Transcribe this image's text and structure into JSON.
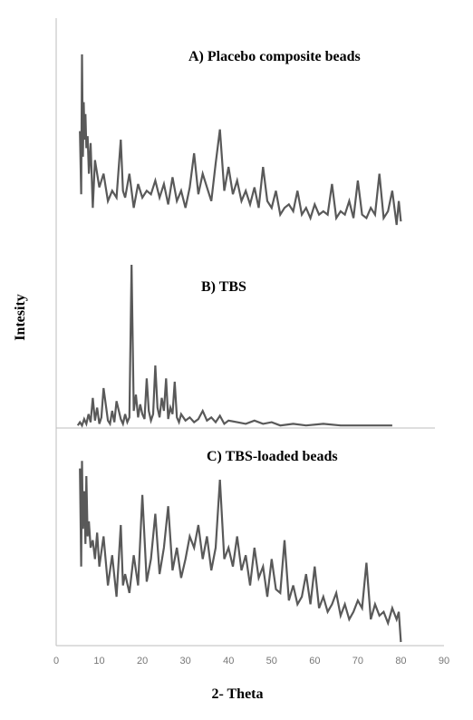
{
  "chart_data": {
    "type": "line",
    "xlabel": "2- Theta",
    "ylabel": "Intesity",
    "xlim": [
      0,
      90
    ],
    "xticks": [
      0,
      10,
      20,
      30,
      40,
      50,
      60,
      70,
      80,
      90
    ],
    "grid": false,
    "colors": {
      "trace": "#595959",
      "axis": "#bdbdbd"
    },
    "panels": [
      {
        "title": "A) Placebo composite beads",
        "series": [
          {
            "x": [
              5.5,
              5.8,
              6.0,
              6.2,
              6.4,
              6.6,
              6.8,
              7.0,
              7.3,
              7.6,
              8.0,
              8.5,
              9.0,
              10.0,
              11.0,
              12.0,
              13.0,
              14.0,
              15.0,
              15.5,
              16.0,
              17.0,
              18.0,
              19.0,
              20.0,
              21.0,
              22.0,
              23.0,
              24.0,
              25.0,
              26.0,
              27.0,
              28.0,
              29.0,
              30.0,
              31.0,
              32.0,
              33.0,
              34.0,
              35.0,
              36.0,
              37.0,
              38.0,
              39.0,
              40.0,
              41.0,
              42.0,
              43.0,
              44.0,
              45.0,
              46.0,
              47.0,
              48.0,
              49.0,
              50.0,
              51.0,
              52.0,
              53.0,
              54.0,
              55.0,
              56.0,
              57.0,
              58.0,
              59.0,
              60.0,
              61.0,
              62.0,
              63.0,
              64.0,
              65.0,
              66.0,
              67.0,
              68.0,
              69.0,
              70.0,
              71.0,
              72.0,
              73.0,
              74.0,
              75.0,
              76.0,
              77.0,
              78.0,
              79.0,
              79.5,
              80.0
            ],
            "y": [
              0.55,
              0.18,
              1.0,
              0.4,
              0.72,
              0.5,
              0.65,
              0.45,
              0.52,
              0.3,
              0.48,
              0.1,
              0.38,
              0.22,
              0.3,
              0.14,
              0.2,
              0.16,
              0.5,
              0.2,
              0.16,
              0.3,
              0.1,
              0.24,
              0.16,
              0.2,
              0.18,
              0.26,
              0.16,
              0.24,
              0.12,
              0.28,
              0.14,
              0.2,
              0.1,
              0.22,
              0.42,
              0.18,
              0.3,
              0.22,
              0.14,
              0.36,
              0.56,
              0.2,
              0.34,
              0.18,
              0.26,
              0.14,
              0.2,
              0.12,
              0.22,
              0.1,
              0.34,
              0.14,
              0.1,
              0.2,
              0.06,
              0.1,
              0.12,
              0.08,
              0.2,
              0.06,
              0.1,
              0.04,
              0.12,
              0.06,
              0.08,
              0.06,
              0.24,
              0.04,
              0.08,
              0.06,
              0.14,
              0.04,
              0.26,
              0.06,
              0.04,
              0.1,
              0.06,
              0.3,
              0.04,
              0.08,
              0.2,
              0.0,
              0.14,
              0.02
            ]
          }
        ]
      },
      {
        "title": "B) TBS",
        "series": [
          {
            "x": [
              5.0,
              5.5,
              6.0,
              6.5,
              7.0,
              7.5,
              8.0,
              8.5,
              9.0,
              9.5,
              10.0,
              10.5,
              11.0,
              12.0,
              12.5,
              13.0,
              13.5,
              14.0,
              15.0,
              15.5,
              16.0,
              16.5,
              17.0,
              17.5,
              18.0,
              18.5,
              19.0,
              19.5,
              20.0,
              20.5,
              21.0,
              21.5,
              22.0,
              22.5,
              23.0,
              23.5,
              24.0,
              24.5,
              25.0,
              25.5,
              26.0,
              26.5,
              27.0,
              27.5,
              28.0,
              28.5,
              29.0,
              30.0,
              31.0,
              32.0,
              33.0,
              34.0,
              35.0,
              36.0,
              37.0,
              38.0,
              39.0,
              40.0,
              42.0,
              44.0,
              46.0,
              48.0,
              50.0,
              52.0,
              55.0,
              58.0,
              62.0,
              66.0,
              70.0,
              74.0,
              78.0
            ],
            "y": [
              0.01,
              0.03,
              0.01,
              0.05,
              0.02,
              0.08,
              0.03,
              0.18,
              0.04,
              0.12,
              0.02,
              0.06,
              0.24,
              0.04,
              0.02,
              0.1,
              0.03,
              0.16,
              0.05,
              0.02,
              0.08,
              0.03,
              0.06,
              1.0,
              0.1,
              0.2,
              0.06,
              0.14,
              0.08,
              0.05,
              0.3,
              0.1,
              0.04,
              0.08,
              0.38,
              0.12,
              0.06,
              0.18,
              0.1,
              0.3,
              0.05,
              0.12,
              0.08,
              0.28,
              0.06,
              0.03,
              0.08,
              0.04,
              0.06,
              0.03,
              0.05,
              0.1,
              0.04,
              0.06,
              0.03,
              0.07,
              0.02,
              0.04,
              0.03,
              0.02,
              0.04,
              0.02,
              0.03,
              0.01,
              0.02,
              0.01,
              0.02,
              0.01,
              0.01,
              0.01,
              0.01
            ]
          }
        ]
      },
      {
        "title": "C) TBS-loaded beads",
        "series": [
          {
            "x": [
              5.5,
              5.8,
              6.0,
              6.2,
              6.5,
              6.8,
              7.0,
              7.3,
              7.6,
              8.0,
              8.5,
              9.0,
              9.5,
              10.0,
              11.0,
              12.0,
              13.0,
              14.0,
              15.0,
              15.5,
              16.0,
              17.0,
              18.0,
              19.0,
              20.0,
              21.0,
              22.0,
              23.0,
              24.0,
              25.0,
              26.0,
              27.0,
              28.0,
              29.0,
              30.0,
              31.0,
              32.0,
              33.0,
              34.0,
              35.0,
              36.0,
              37.0,
              38.0,
              39.0,
              40.0,
              41.0,
              42.0,
              43.0,
              44.0,
              45.0,
              46.0,
              47.0,
              48.0,
              49.0,
              50.0,
              51.0,
              52.0,
              53.0,
              54.0,
              55.0,
              56.0,
              57.0,
              58.0,
              59.0,
              60.0,
              61.0,
              62.0,
              63.0,
              64.0,
              65.0,
              66.0,
              67.0,
              68.0,
              69.0,
              70.0,
              71.0,
              72.0,
              73.0,
              74.0,
              75.0,
              76.0,
              77.0,
              78.0,
              79.0,
              79.5,
              80.0
            ],
            "y": [
              0.92,
              0.4,
              0.96,
              0.6,
              0.8,
              0.52,
              0.88,
              0.56,
              0.64,
              0.5,
              0.54,
              0.44,
              0.58,
              0.4,
              0.56,
              0.3,
              0.46,
              0.24,
              0.62,
              0.3,
              0.36,
              0.26,
              0.46,
              0.3,
              0.78,
              0.32,
              0.44,
              0.68,
              0.36,
              0.5,
              0.72,
              0.38,
              0.5,
              0.34,
              0.44,
              0.56,
              0.5,
              0.62,
              0.44,
              0.56,
              0.38,
              0.5,
              0.86,
              0.44,
              0.5,
              0.4,
              0.56,
              0.38,
              0.46,
              0.3,
              0.5,
              0.34,
              0.4,
              0.24,
              0.44,
              0.28,
              0.26,
              0.54,
              0.22,
              0.3,
              0.2,
              0.24,
              0.36,
              0.2,
              0.4,
              0.18,
              0.24,
              0.16,
              0.2,
              0.26,
              0.14,
              0.2,
              0.12,
              0.16,
              0.22,
              0.18,
              0.42,
              0.12,
              0.2,
              0.14,
              0.16,
              0.1,
              0.18,
              0.12,
              0.16,
              0.0
            ]
          }
        ]
      }
    ]
  }
}
